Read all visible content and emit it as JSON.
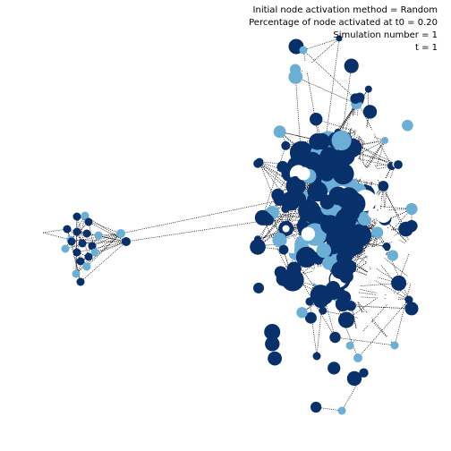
{
  "info": {
    "method": "Initial node activation method = Random",
    "percentage": "Percentage of node activated at t0 = 0.20",
    "simulation": "Simulation number = 1",
    "time": "t = 1"
  },
  "legend_colors": {
    "background": "#ffffff",
    "edge": "#000000",
    "node_dark": "#08306b",
    "node_light": "#6baed6",
    "node_white": "#ffffff"
  },
  "graph": {
    "node_states": [
      "dark",
      "light",
      "white"
    ],
    "bridge_edges": 2
  }
}
